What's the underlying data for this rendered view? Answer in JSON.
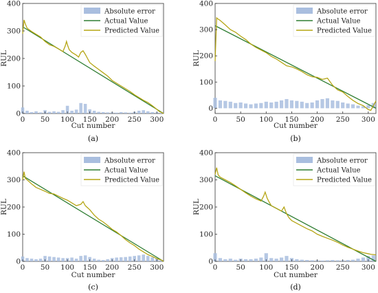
{
  "chart_data": [
    {
      "type": "line",
      "caption": "(a)",
      "xlabel": "Cut number",
      "ylabel": "RUL",
      "xlim": [
        0,
        315
      ],
      "ylim": [
        0,
        400
      ],
      "xticks": [
        0,
        50,
        100,
        150,
        200,
        250,
        300
      ],
      "yticks": [
        0,
        100,
        200,
        300,
        400
      ],
      "legend": [
        "Absolute error",
        "Actual Value",
        "Predicted Value"
      ],
      "legend_position": "top-right",
      "series": [
        {
          "name": "Actual Value",
          "x": [
            0,
            315
          ],
          "y": [
            315,
            0
          ]
        },
        {
          "name": "Predicted Value",
          "x": [
            0,
            3,
            6,
            10,
            20,
            30,
            40,
            50,
            60,
            70,
            80,
            90,
            95,
            98,
            100,
            104,
            110,
            120,
            125,
            130,
            135,
            140,
            145,
            150,
            160,
            170,
            180,
            190,
            200,
            210,
            220,
            230,
            240,
            250,
            260,
            270,
            280,
            290,
            300,
            305,
            310,
            315
          ],
          "y": [
            290,
            340,
            325,
            310,
            298,
            288,
            278,
            262,
            250,
            244,
            235,
            225,
            245,
            262,
            250,
            232,
            222,
            212,
            205,
            222,
            228,
            215,
            200,
            185,
            172,
            160,
            148,
            136,
            120,
            110,
            100,
            90,
            80,
            68,
            58,
            48,
            40,
            28,
            15,
            8,
            4,
            0
          ]
        },
        {
          "name": "Absolute error",
          "x": [
            0,
            10,
            20,
            30,
            40,
            50,
            60,
            70,
            80,
            90,
            100,
            110,
            120,
            130,
            140,
            150,
            160,
            170,
            180,
            190,
            200,
            210,
            220,
            230,
            240,
            250,
            260,
            270,
            280,
            290,
            300,
            310
          ],
          "y": [
            22,
            10,
            5,
            8,
            4,
            12,
            6,
            8,
            6,
            12,
            28,
            10,
            14,
            38,
            35,
            15,
            10,
            6,
            5,
            4,
            4,
            3,
            5,
            4,
            3,
            6,
            10,
            12,
            8,
            5,
            4,
            2
          ]
        }
      ]
    },
    {
      "type": "line",
      "caption": "(b)",
      "xlabel": "Cut number",
      "ylabel": "RUL",
      "xlim": [
        0,
        315
      ],
      "ylim": [
        -20,
        400
      ],
      "xticks": [
        0,
        50,
        100,
        150,
        200,
        250,
        300
      ],
      "yticks": [
        0,
        100,
        200,
        300,
        400
      ],
      "legend": [
        "Absolute error",
        "Actual Value",
        "Predicted Value"
      ],
      "legend_position": "top-right",
      "series": [
        {
          "name": "Actual Value",
          "x": [
            0,
            315
          ],
          "y": [
            315,
            0
          ]
        },
        {
          "name": "Predicted Value",
          "x": [
            0,
            3,
            6,
            10,
            20,
            30,
            40,
            50,
            60,
            70,
            80,
            90,
            100,
            110,
            120,
            130,
            140,
            150,
            160,
            170,
            180,
            190,
            200,
            210,
            220,
            230,
            240,
            250,
            260,
            270,
            280,
            290,
            300,
            305,
            310,
            315
          ],
          "y": [
            180,
            345,
            340,
            335,
            318,
            300,
            290,
            275,
            262,
            245,
            232,
            222,
            212,
            198,
            188,
            175,
            162,
            158,
            150,
            140,
            128,
            120,
            118,
            110,
            115,
            88,
            70,
            62,
            45,
            30,
            18,
            10,
            -5,
            -8,
            10,
            28
          ]
        },
        {
          "name": "Absolute error",
          "x": [
            0,
            10,
            20,
            30,
            40,
            50,
            60,
            70,
            80,
            90,
            100,
            110,
            120,
            130,
            140,
            150,
            160,
            170,
            180,
            190,
            200,
            210,
            220,
            230,
            240,
            250,
            260,
            270,
            280,
            290,
            300,
            310
          ],
          "y": [
            40,
            30,
            28,
            25,
            20,
            22,
            18,
            15,
            18,
            20,
            25,
            22,
            25,
            30,
            35,
            30,
            28,
            25,
            20,
            22,
            30,
            35,
            38,
            30,
            28,
            22,
            18,
            15,
            10,
            8,
            12,
            20
          ]
        }
      ]
    },
    {
      "type": "line",
      "caption": "(c)",
      "xlabel": "Cut number",
      "ylabel": "RUL",
      "xlim": [
        0,
        315
      ],
      "ylim": [
        0,
        400
      ],
      "xticks": [
        0,
        50,
        100,
        150,
        200,
        250,
        300
      ],
      "yticks": [
        0,
        100,
        200,
        300,
        400
      ],
      "legend": [
        "Absolute error",
        "Actual Value",
        "Predicted Value"
      ],
      "legend_position": "top-right",
      "series": [
        {
          "name": "Actual Value",
          "x": [
            0,
            315
          ],
          "y": [
            315,
            0
          ]
        },
        {
          "name": "Predicted Value",
          "x": [
            0,
            3,
            6,
            10,
            20,
            30,
            40,
            50,
            60,
            70,
            80,
            90,
            100,
            110,
            120,
            130,
            135,
            140,
            150,
            160,
            170,
            180,
            190,
            200,
            210,
            220,
            230,
            240,
            250,
            260,
            270,
            280,
            290,
            300,
            310,
            315
          ],
          "y": [
            300,
            330,
            305,
            300,
            285,
            272,
            265,
            258,
            250,
            248,
            240,
            232,
            225,
            215,
            205,
            210,
            220,
            205,
            190,
            170,
            155,
            145,
            132,
            118,
            108,
            95,
            80,
            68,
            58,
            45,
            35,
            25,
            18,
            10,
            5,
            0
          ]
        },
        {
          "name": "Absolute error",
          "x": [
            0,
            10,
            20,
            30,
            40,
            50,
            60,
            70,
            80,
            90,
            100,
            110,
            120,
            130,
            140,
            150,
            160,
            170,
            180,
            190,
            200,
            210,
            220,
            230,
            240,
            250,
            260,
            270,
            280,
            290,
            300,
            310
          ],
          "y": [
            18,
            12,
            10,
            8,
            10,
            20,
            18,
            16,
            14,
            12,
            12,
            14,
            10,
            20,
            22,
            16,
            10,
            6,
            5,
            8,
            12,
            14,
            15,
            16,
            18,
            20,
            22,
            25,
            20,
            15,
            10,
            5
          ]
        }
      ]
    },
    {
      "type": "line",
      "caption": "(d)",
      "xlabel": "Cut number",
      "ylabel": "RUL",
      "xlim": [
        0,
        315
      ],
      "ylim": [
        0,
        400
      ],
      "xticks": [
        0,
        50,
        100,
        150,
        200,
        250,
        300
      ],
      "yticks": [
        0,
        100,
        200,
        300,
        400
      ],
      "legend": [
        "Absolute error",
        "Actual Value",
        "Predicted Value"
      ],
      "legend_position": "top-right",
      "series": [
        {
          "name": "Actual Value",
          "x": [
            0,
            315
          ],
          "y": [
            315,
            0
          ]
        },
        {
          "name": "Predicted Value",
          "x": [
            0,
            3,
            6,
            10,
            20,
            30,
            40,
            50,
            60,
            70,
            80,
            90,
            95,
            98,
            102,
            106,
            110,
            120,
            130,
            135,
            140,
            145,
            150,
            160,
            170,
            180,
            190,
            200,
            210,
            220,
            230,
            240,
            250,
            260,
            270,
            280,
            290,
            300,
            305,
            310,
            315
          ],
          "y": [
            320,
            345,
            318,
            310,
            300,
            290,
            278,
            265,
            252,
            240,
            230,
            222,
            240,
            255,
            232,
            218,
            205,
            195,
            185,
            200,
            175,
            160,
            150,
            140,
            130,
            120,
            112,
            100,
            92,
            85,
            78,
            70,
            60,
            52,
            45,
            38,
            32,
            28,
            26,
            25,
            24
          ]
        },
        {
          "name": "Absolute error",
          "x": [
            0,
            10,
            20,
            30,
            40,
            50,
            60,
            70,
            80,
            90,
            100,
            110,
            120,
            130,
            140,
            150,
            160,
            170,
            180,
            190,
            200,
            210,
            220,
            230,
            240,
            250,
            260,
            270,
            280,
            290,
            300,
            310
          ],
          "y": [
            30,
            12,
            8,
            10,
            6,
            10,
            8,
            8,
            10,
            14,
            30,
            12,
            10,
            14,
            20,
            12,
            8,
            6,
            5,
            4,
            4,
            3,
            4,
            5,
            4,
            4,
            5,
            6,
            10,
            14,
            20,
            22
          ]
        }
      ]
    }
  ],
  "colors": {
    "actual": "#2e7d32",
    "predicted": "#b5a514",
    "error": "#a9bedf",
    "axis": "#333333"
  }
}
